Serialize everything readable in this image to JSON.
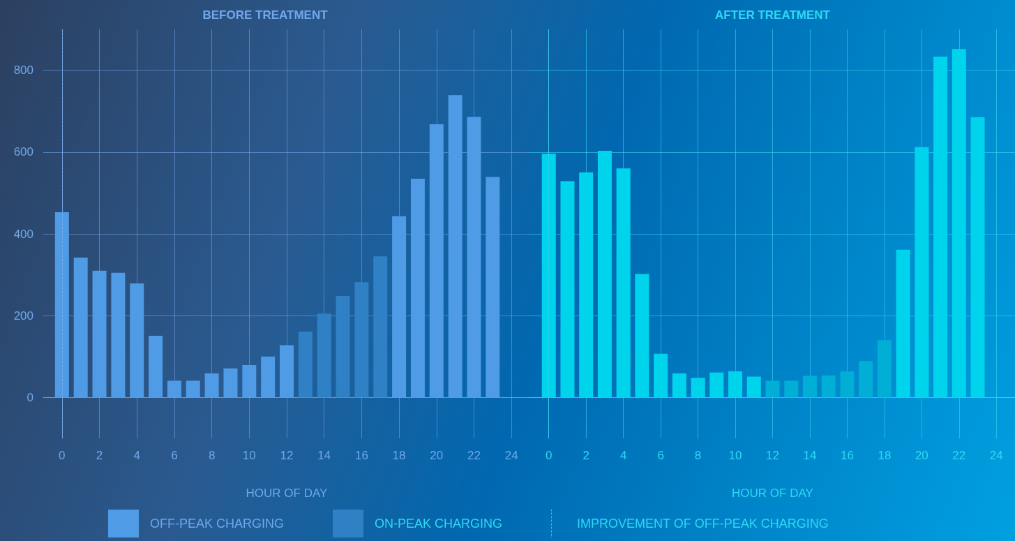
{
  "chart_data": [
    {
      "type": "bar",
      "title": "BEFORE TREATMENT",
      "xlabel": "HOUR OF DAY",
      "x": [
        0,
        1,
        2,
        3,
        4,
        5,
        6,
        7,
        8,
        9,
        10,
        11,
        12,
        13,
        14,
        15,
        16,
        17,
        18,
        19,
        20,
        21,
        22,
        23
      ],
      "xlim": [
        -1,
        25
      ],
      "xticks": [
        0,
        2,
        4,
        6,
        8,
        10,
        12,
        14,
        16,
        18,
        20,
        22,
        24
      ],
      "ylim": [
        -100,
        900
      ],
      "yticks": [
        0,
        200,
        400,
        600,
        800
      ],
      "grid": true,
      "legend": "bottom",
      "series": [
        {
          "name": "OFF-PEAK CHARGING",
          "color": "#4f9be6",
          "values": [
            453,
            342,
            310,
            305,
            279,
            151,
            41,
            41,
            59,
            71,
            79,
            100,
            128,
            null,
            null,
            null,
            null,
            null,
            443,
            535,
            668,
            739,
            686,
            539
          ]
        },
        {
          "name": "ON-PEAK CHARGING",
          "color": "#2f80c4",
          "values": [
            null,
            null,
            null,
            null,
            null,
            null,
            null,
            null,
            null,
            null,
            null,
            null,
            null,
            161,
            205,
            248,
            282,
            345,
            null,
            null,
            null,
            null,
            null,
            null
          ]
        }
      ],
      "ref_lines": [
        {
          "axis": "x",
          "value": 0,
          "label": "IMPROVEMENT OF OFF-PEAK CHARGING",
          "line_style": "dotted",
          "color": "#7fb0e8"
        }
      ]
    },
    {
      "type": "bar",
      "title": "AFTER TREATMENT",
      "xlabel": "HOUR OF DAY",
      "x": [
        0,
        1,
        2,
        3,
        4,
        5,
        6,
        7,
        8,
        9,
        10,
        11,
        12,
        13,
        14,
        15,
        16,
        17,
        18,
        19,
        20,
        21,
        22,
        23
      ],
      "xlim": [
        -1,
        25
      ],
      "xticks": [
        0,
        2,
        4,
        6,
        8,
        10,
        12,
        14,
        16,
        18,
        20,
        22,
        24
      ],
      "ylim": [
        -100,
        900
      ],
      "yticks": [
        0,
        200,
        400,
        600,
        800
      ],
      "grid": true,
      "tick_labels": "x",
      "series": [
        {
          "color": "#00d4ec",
          "values": [
            596,
            529,
            550,
            603,
            560,
            302,
            107,
            59,
            48,
            61,
            64,
            51,
            null,
            null,
            null,
            null,
            null,
            null,
            null,
            361,
            612,
            833,
            852,
            685
          ]
        },
        {
          "color": "#00aed6",
          "values": [
            null,
            null,
            null,
            null,
            null,
            null,
            null,
            null,
            null,
            null,
            null,
            null,
            41,
            41,
            53,
            54,
            64,
            89,
            140,
            null,
            null,
            null,
            null,
            null
          ]
        }
      ],
      "ref_lines": [
        {
          "axis": "x",
          "value": 0,
          "line_style": "dotted",
          "color": "#40d0f0"
        }
      ]
    }
  ]
}
